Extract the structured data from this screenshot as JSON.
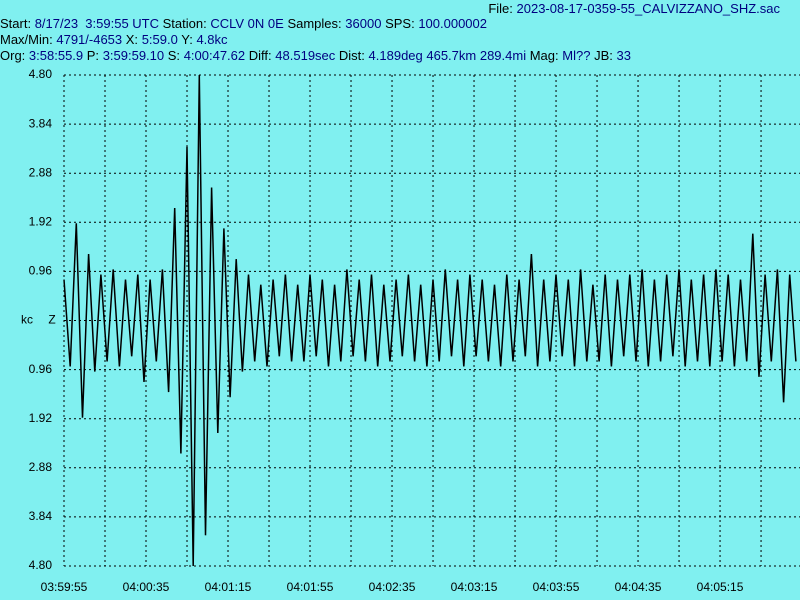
{
  "header": {
    "file": {
      "label": "File:",
      "value": "2023-08-17-0359-55_CALVIZZANO_SHZ.sac"
    },
    "lines": [
      [
        {
          "label": "Start:",
          "value": "8/17/23  3:59:55 UTC"
        },
        {
          "label": "Station:",
          "value": "CCLV 0N 0E"
        },
        {
          "label": "Samples:",
          "value": "36000"
        },
        {
          "label": "SPS:",
          "value": "100.000002"
        }
      ],
      [
        {
          "label": "Max/Min:",
          "value": "4791/-4653"
        },
        {
          "label": "X:",
          "value": "5:59.0"
        },
        {
          "label": "Y:",
          "value": "4.8kc"
        }
      ],
      [
        {
          "label": "Org:",
          "value": "3:58:55.9"
        },
        {
          "label": "P:",
          "value": "3:59:59.10"
        },
        {
          "label": "S:",
          "value": "4:00:47.62"
        },
        {
          "label": "Diff:",
          "value": "48.519sec"
        },
        {
          "label": "Dist:",
          "value": "4.189deg 465.7km 289.4mi"
        },
        {
          "label": "Mag:",
          "value": "Ml??"
        },
        {
          "label": "JB:",
          "value": "33"
        }
      ]
    ]
  },
  "chart_data": {
    "type": "line",
    "ylabel": "kc",
    "channel": "Z",
    "color": "#000000",
    "grid": true,
    "xlim": [
      14395,
      14754
    ],
    "ylim": [
      -4.8,
      4.8
    ],
    "xticks": [
      {
        "value": 14395,
        "label": "03:59:55"
      },
      {
        "value": 14435,
        "label": "04:00:35"
      },
      {
        "value": 14475,
        "label": "04:01:15"
      },
      {
        "value": 14515,
        "label": "04:01:55"
      },
      {
        "value": 14555,
        "label": "04:02:35"
      },
      {
        "value": 14595,
        "label": "04:03:15"
      },
      {
        "value": 14635,
        "label": "04:03:55"
      },
      {
        "value": 14675,
        "label": "04:04:35"
      },
      {
        "value": 14715,
        "label": "04:05:15"
      }
    ],
    "xgrid_minor": [
      14415,
      14455,
      14495,
      14535,
      14575,
      14615,
      14655,
      14695,
      14735
    ],
    "yticks": [
      {
        "value": 4.8,
        "label": "4.80"
      },
      {
        "value": 3.84,
        "label": "3.84"
      },
      {
        "value": 2.88,
        "label": "2.88"
      },
      {
        "value": 1.92,
        "label": "1.92"
      },
      {
        "value": 0.96,
        "label": "0.96"
      },
      {
        "value": -0.96,
        "label": "0.96"
      },
      {
        "value": -1.92,
        "label": "1.92"
      },
      {
        "value": -2.88,
        "label": "2.88"
      },
      {
        "value": -3.84,
        "label": "3.84"
      },
      {
        "value": -4.8,
        "label": "4.80"
      }
    ],
    "x": [
      14395,
      14398,
      14401,
      14404,
      14407,
      14410,
      14413,
      14416,
      14419,
      14422,
      14425,
      14428,
      14431,
      14434,
      14437,
      14440,
      14443,
      14446,
      14449,
      14452,
      14455,
      14458,
      14461,
      14464,
      14467,
      14470,
      14473,
      14476,
      14479,
      14482,
      14485,
      14488,
      14491,
      14494,
      14497,
      14500,
      14503,
      14506,
      14509,
      14512,
      14515,
      14518,
      14521,
      14524,
      14527,
      14530,
      14533,
      14536,
      14539,
      14542,
      14545,
      14548,
      14551,
      14554,
      14557,
      14560,
      14563,
      14566,
      14569,
      14572,
      14575,
      14578,
      14581,
      14584,
      14587,
      14590,
      14593,
      14596,
      14599,
      14602,
      14605,
      14608,
      14611,
      14614,
      14617,
      14620,
      14623,
      14626,
      14629,
      14632,
      14635,
      14638,
      14641,
      14644,
      14647,
      14650,
      14653,
      14656,
      14659,
      14662,
      14665,
      14668,
      14671,
      14674,
      14677,
      14680,
      14683,
      14686,
      14689,
      14692,
      14695,
      14698,
      14701,
      14704,
      14707,
      14710,
      14713,
      14716,
      14719,
      14722,
      14725,
      14728,
      14731,
      14734,
      14737,
      14740,
      14743,
      14746,
      14749,
      14752
    ],
    "values": [
      0.8,
      -0.9,
      1.9,
      -1.9,
      1.3,
      -1.0,
      0.9,
      -0.8,
      1.0,
      -0.9,
      0.8,
      -0.7,
      0.9,
      -1.2,
      0.8,
      -0.8,
      1.0,
      -1.4,
      2.2,
      -2.6,
      3.4,
      -4.8,
      4.8,
      -4.2,
      2.6,
      -2.2,
      1.8,
      -1.5,
      1.2,
      -1.0,
      0.9,
      -0.8,
      0.7,
      -0.9,
      0.8,
      -0.7,
      0.9,
      -0.8,
      0.7,
      -0.8,
      0.9,
      -0.7,
      0.8,
      -0.9,
      0.7,
      -0.8,
      1.0,
      -0.7,
      0.8,
      -0.8,
      0.9,
      -0.9,
      0.7,
      -0.8,
      0.8,
      -0.7,
      0.9,
      -0.8,
      0.7,
      -0.9,
      0.8,
      -0.8,
      1.0,
      -0.7,
      0.8,
      -0.9,
      0.9,
      -0.7,
      0.8,
      -0.8,
      0.7,
      -0.9,
      0.9,
      -0.8,
      0.8,
      -0.7,
      1.3,
      -0.9,
      0.8,
      -0.8,
      0.9,
      -0.7,
      0.8,
      -0.9,
      1.0,
      -0.8,
      0.7,
      -0.8,
      0.9,
      -0.9,
      0.8,
      -0.7,
      0.9,
      -0.8,
      1.0,
      -0.9,
      0.8,
      -0.8,
      0.9,
      -0.7,
      1.0,
      -0.9,
      0.8,
      -0.8,
      0.9,
      -0.9,
      1.0,
      -0.8,
      0.9,
      -0.9,
      0.8,
      -0.8,
      1.7,
      -1.1,
      0.9,
      -0.8,
      1.0,
      -1.6,
      0.9,
      -0.8
    ]
  }
}
